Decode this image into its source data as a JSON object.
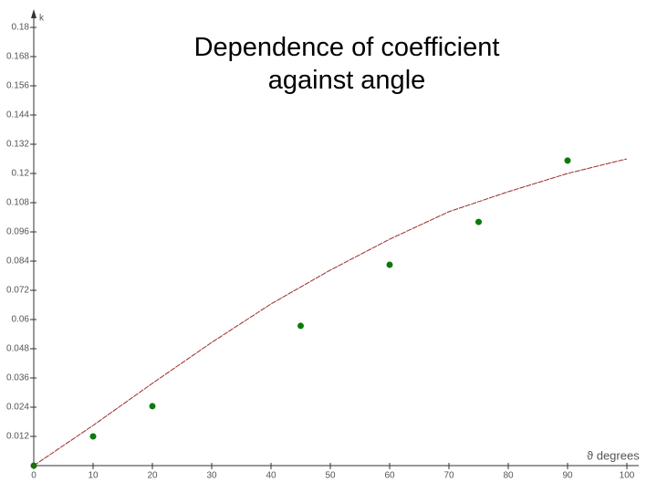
{
  "chart_data": {
    "type": "scatter",
    "title": "Dependence of coefficient against  angle",
    "x_label": "ϑ degrees",
    "y_label": "k",
    "xlim": [
      0,
      100
    ],
    "ylim": [
      0,
      0.18
    ],
    "xticks": [
      0,
      10,
      20,
      30,
      40,
      50,
      60,
      70,
      80,
      90,
      100
    ],
    "yticks": [
      0.012,
      0.024,
      0.036,
      0.048,
      0.06,
      0.072,
      0.084,
      0.096,
      0.108,
      0.12,
      0.132,
      0.144,
      0.156,
      0.168,
      0.18
    ],
    "series": [
      {
        "type": "scatter",
        "color": "#0a7a0a",
        "x": [
          0,
          10,
          20,
          45,
          60,
          75,
          90
        ],
        "values": [
          0,
          0.012,
          0.0244,
          0.0574,
          0.0825,
          0.1001,
          0.1253
        ]
      },
      {
        "type": "line",
        "color": "#9b2a2a",
        "x": [
          0,
          10,
          20,
          30,
          40,
          50,
          60,
          70,
          80,
          90,
          100
        ],
        "values": [
          0,
          0.0165,
          0.0338,
          0.0506,
          0.0664,
          0.0803,
          0.093,
          0.1043,
          0.1125,
          0.12,
          0.126
        ]
      }
    ]
  }
}
